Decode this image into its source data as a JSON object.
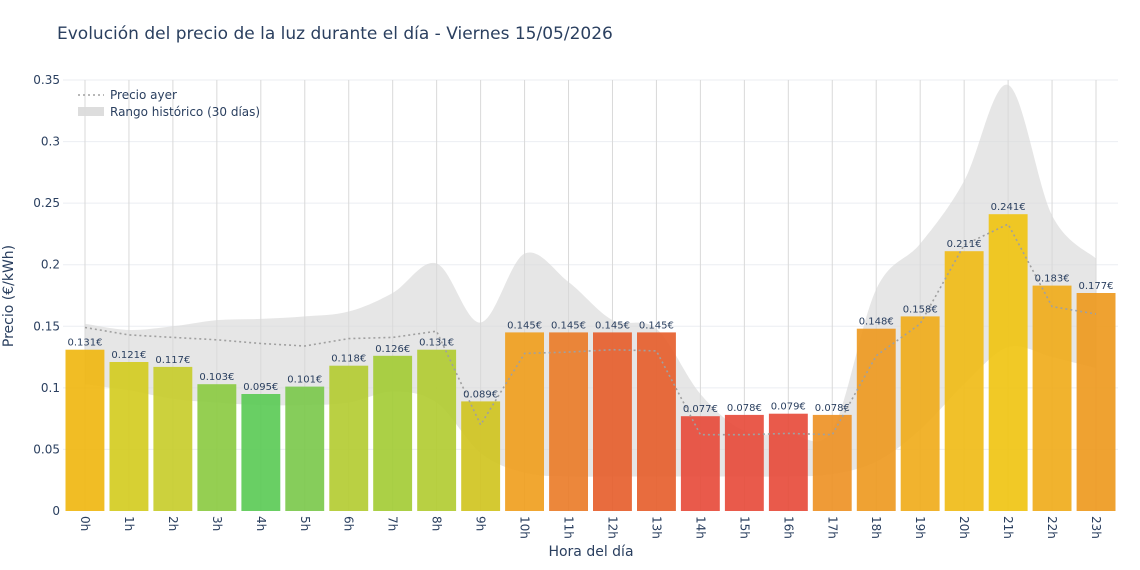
{
  "chart_data": {
    "type": "bar",
    "title": "Evolución del precio de la luz durante el día - Viernes 15/05/2026",
    "xlabel": "Hora del día",
    "ylabel": "Precio (€/kWh)",
    "ylim": [
      0,
      0.35
    ],
    "yticks": [
      0,
      0.05,
      0.1,
      0.15,
      0.2,
      0.25,
      0.3,
      0.35
    ],
    "ytick_labels": [
      "0",
      "0.05",
      "0.1",
      "0.15",
      "0.2",
      "0.25",
      "0.3",
      "0.35"
    ],
    "categories": [
      "0h",
      "1h",
      "2h",
      "3h",
      "4h",
      "5h",
      "6h",
      "7h",
      "8h",
      "9h",
      "10h",
      "11h",
      "12h",
      "13h",
      "14h",
      "15h",
      "16h",
      "17h",
      "18h",
      "19h",
      "20h",
      "21h",
      "22h",
      "23h"
    ],
    "values": [
      0.131,
      0.121,
      0.117,
      0.103,
      0.095,
      0.101,
      0.118,
      0.126,
      0.131,
      0.089,
      0.145,
      0.145,
      0.145,
      0.145,
      0.077,
      0.078,
      0.079,
      0.078,
      0.148,
      0.158,
      0.211,
      0.241,
      0.183,
      0.177
    ],
    "bar_labels": [
      "0.131€",
      "0.121€",
      "0.117€",
      "0.103€",
      "0.095€",
      "0.101€",
      "0.118€",
      "0.126€",
      "0.131€",
      "0.089€",
      "0.145€",
      "0.145€",
      "0.145€",
      "0.145€",
      "0.077€",
      "0.078€",
      "0.079€",
      "0.078€",
      "0.148€",
      "0.158€",
      "0.211€",
      "0.241€",
      "0.183€",
      "0.177€"
    ],
    "bar_colors": [
      "#f0b712",
      "#d4cc22",
      "#c8cd2c",
      "#8ccb43",
      "#5ccb57",
      "#7cc94d",
      "#b4cc33",
      "#a4cc36",
      "#b2cc33",
      "#d0c421",
      "#f0a020",
      "#ea7d2a",
      "#e6602e",
      "#e6602e",
      "#e74c3c",
      "#e74c3c",
      "#e74c3c",
      "#ee9226",
      "#ee9a22",
      "#f0ac1c",
      "#f0bc18",
      "#f0c414",
      "#f0ac1c",
      "#ee9a20"
    ],
    "series": [
      {
        "name": "Precio ayer",
        "style": "dotted",
        "color": "#a0a0a0",
        "values": [
          0.149,
          0.143,
          0.141,
          0.139,
          0.136,
          0.134,
          0.14,
          0.141,
          0.146,
          0.07,
          0.128,
          0.129,
          0.131,
          0.13,
          0.062,
          0.062,
          0.063,
          0.062,
          0.126,
          0.152,
          0.216,
          0.233,
          0.166,
          0.16
        ]
      },
      {
        "name": "Rango histórico (30 días)",
        "style": "band",
        "color": "#d9d9d9",
        "upper": [
          0.152,
          0.147,
          0.15,
          0.155,
          0.156,
          0.158,
          0.162,
          0.177,
          0.201,
          0.153,
          0.209,
          0.186,
          0.155,
          0.148,
          0.095,
          0.065,
          0.063,
          0.066,
          0.18,
          0.217,
          0.268,
          0.346,
          0.24,
          0.205
        ],
        "lower": [
          0.103,
          0.098,
          0.091,
          0.088,
          0.086,
          0.086,
          0.088,
          0.097,
          0.088,
          0.047,
          0.031,
          0.028,
          0.028,
          0.028,
          0.028,
          0.028,
          0.028,
          0.03,
          0.04,
          0.066,
          0.103,
          0.133,
          0.125,
          0.116
        ]
      }
    ],
    "legend_position": "top-left",
    "grid": true
  }
}
